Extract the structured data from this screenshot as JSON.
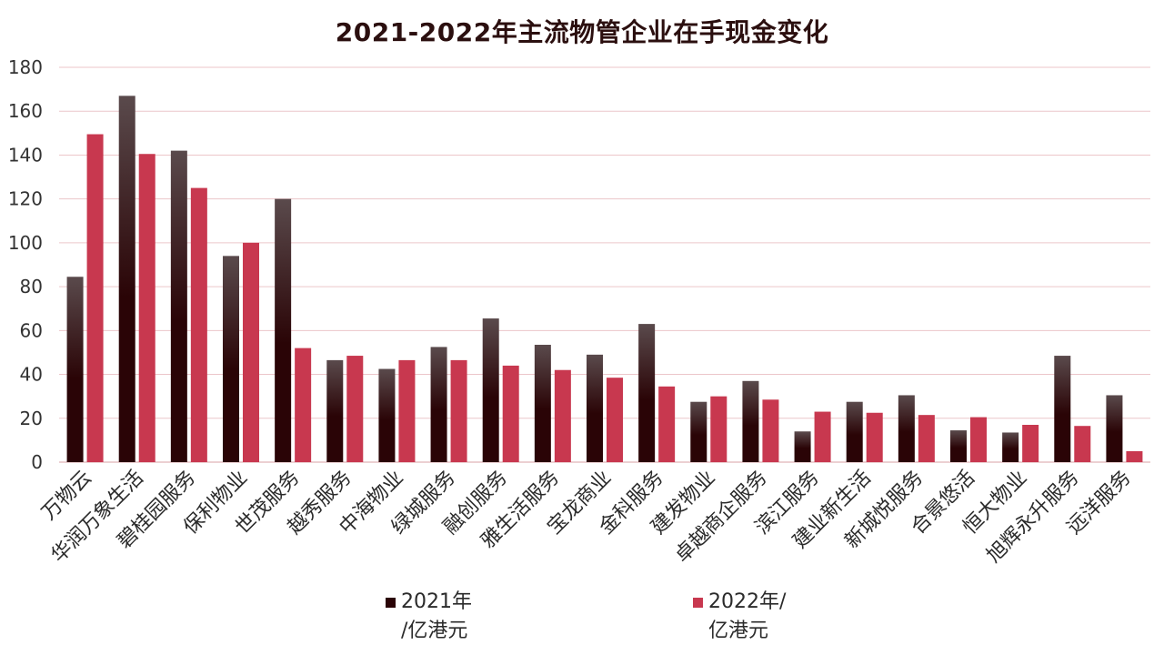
{
  "chart_data": {
    "type": "bar",
    "title": "2021-2022年主流物管企业在手现金变化",
    "categories": [
      "万物云",
      "华润万象生活",
      "碧桂园服务",
      "保利物业",
      "世茂服务",
      "越秀服务",
      "中海物业",
      "绿城服务",
      "融创服务",
      "雅生活服务",
      "宝龙商业",
      "金科服务",
      "建发物业",
      "卓越商企服务",
      "滨江服务",
      "建业新生活",
      "新城悦服务",
      "合景悠活",
      "恒大物业",
      "旭辉永升服务",
      "远洋服务"
    ],
    "series": [
      {
        "name": "2021年\n/亿港元",
        "color": "#2a0406",
        "values": [
          84.5,
          167,
          142,
          94,
          120,
          46.5,
          42.5,
          52.5,
          65.5,
          53.5,
          49,
          63,
          27.5,
          37,
          14,
          27.5,
          30.5,
          14.5,
          13.5,
          48.5,
          30.5
        ]
      },
      {
        "name": "2022年/\n亿港元",
        "color": "#c8384f",
        "values": [
          149.5,
          140.5,
          125,
          100,
          52,
          48.5,
          46.5,
          46.5,
          44,
          42,
          38.5,
          34.5,
          30,
          28.5,
          23,
          22.5,
          21.5,
          20.5,
          17,
          16.5,
          5
        ]
      }
    ],
    "ylim": [
      0,
      180
    ],
    "yticks": [
      0,
      20,
      40,
      60,
      80,
      100,
      120,
      140,
      160,
      180
    ],
    "grid": true,
    "legend_position": "bottom",
    "xlabel": "",
    "ylabel": ""
  }
}
